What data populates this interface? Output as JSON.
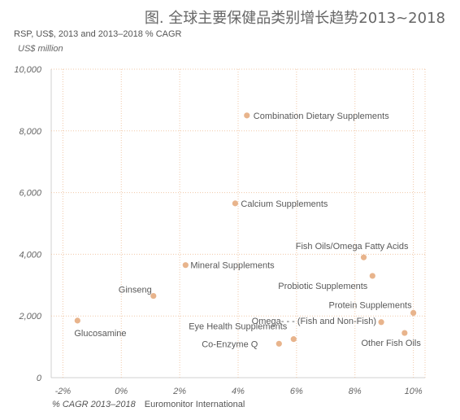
{
  "title": "图. 全球主要保健品类别增长趋势2013~2018",
  "subtitle": "RSP, US$, 2013 and 2013–2018 % CAGR",
  "unit": "US$ million",
  "footer": {
    "xlabel": "% CAGR 2013–2018",
    "source": "Euromonitor International"
  },
  "colors": {
    "point": "#e8b48c",
    "grid": "#f0c8a8",
    "axis": "#d0d0d0"
  },
  "chart_data": {
    "type": "scatter",
    "title": "图. 全球主要保健品类别增长趋势2013~2018",
    "subtitle": "RSP, US$, 2013 and 2013–2018 % CAGR",
    "xlabel": "% CAGR 2013–2018",
    "ylabel": "US$ million",
    "xlim": [
      -2.4,
      10.4
    ],
    "ylim": [
      0,
      10000
    ],
    "xticks": [
      -2,
      0,
      2,
      4,
      6,
      8,
      10
    ],
    "xtick_labels": [
      "-2%",
      "0%",
      "2%",
      "4%",
      "6%",
      "8%",
      "10%"
    ],
    "yticks": [
      0,
      2000,
      4000,
      6000,
      8000,
      10000
    ],
    "ytick_labels": [
      "0",
      "2,000",
      "4,000",
      "6,000",
      "8,000",
      "10,000"
    ],
    "grid": true,
    "points": [
      {
        "label": "Combination Dietary Supplements",
        "x": 4.3,
        "y": 8500
      },
      {
        "label": "Calcium Supplements",
        "x": 3.9,
        "y": 5650
      },
      {
        "label": "Fish Oils/Omega Fatty Acids",
        "x": 8.3,
        "y": 3900
      },
      {
        "label": "Mineral Supplements",
        "x": 2.2,
        "y": 3650
      },
      {
        "label": "Probiotic Supplements",
        "x": 8.6,
        "y": 3300
      },
      {
        "label": "Ginseng",
        "x": 1.1,
        "y": 2650
      },
      {
        "label": "Protein Supplements",
        "x": 10.0,
        "y": 2100
      },
      {
        "label": "Glucosamine",
        "x": -1.5,
        "y": 1850
      },
      {
        "label": "Omega-   -   -   (Fish and Non-Fish)",
        "x": 8.9,
        "y": 1800
      },
      {
        "label": "Other Fish Oils",
        "x": 9.7,
        "y": 1450
      },
      {
        "label": "Eye Health Supplements",
        "x": 5.9,
        "y": 1250
      },
      {
        "label": "Co-Enzyme Q",
        "x": 5.4,
        "y": 1100
      }
    ]
  }
}
